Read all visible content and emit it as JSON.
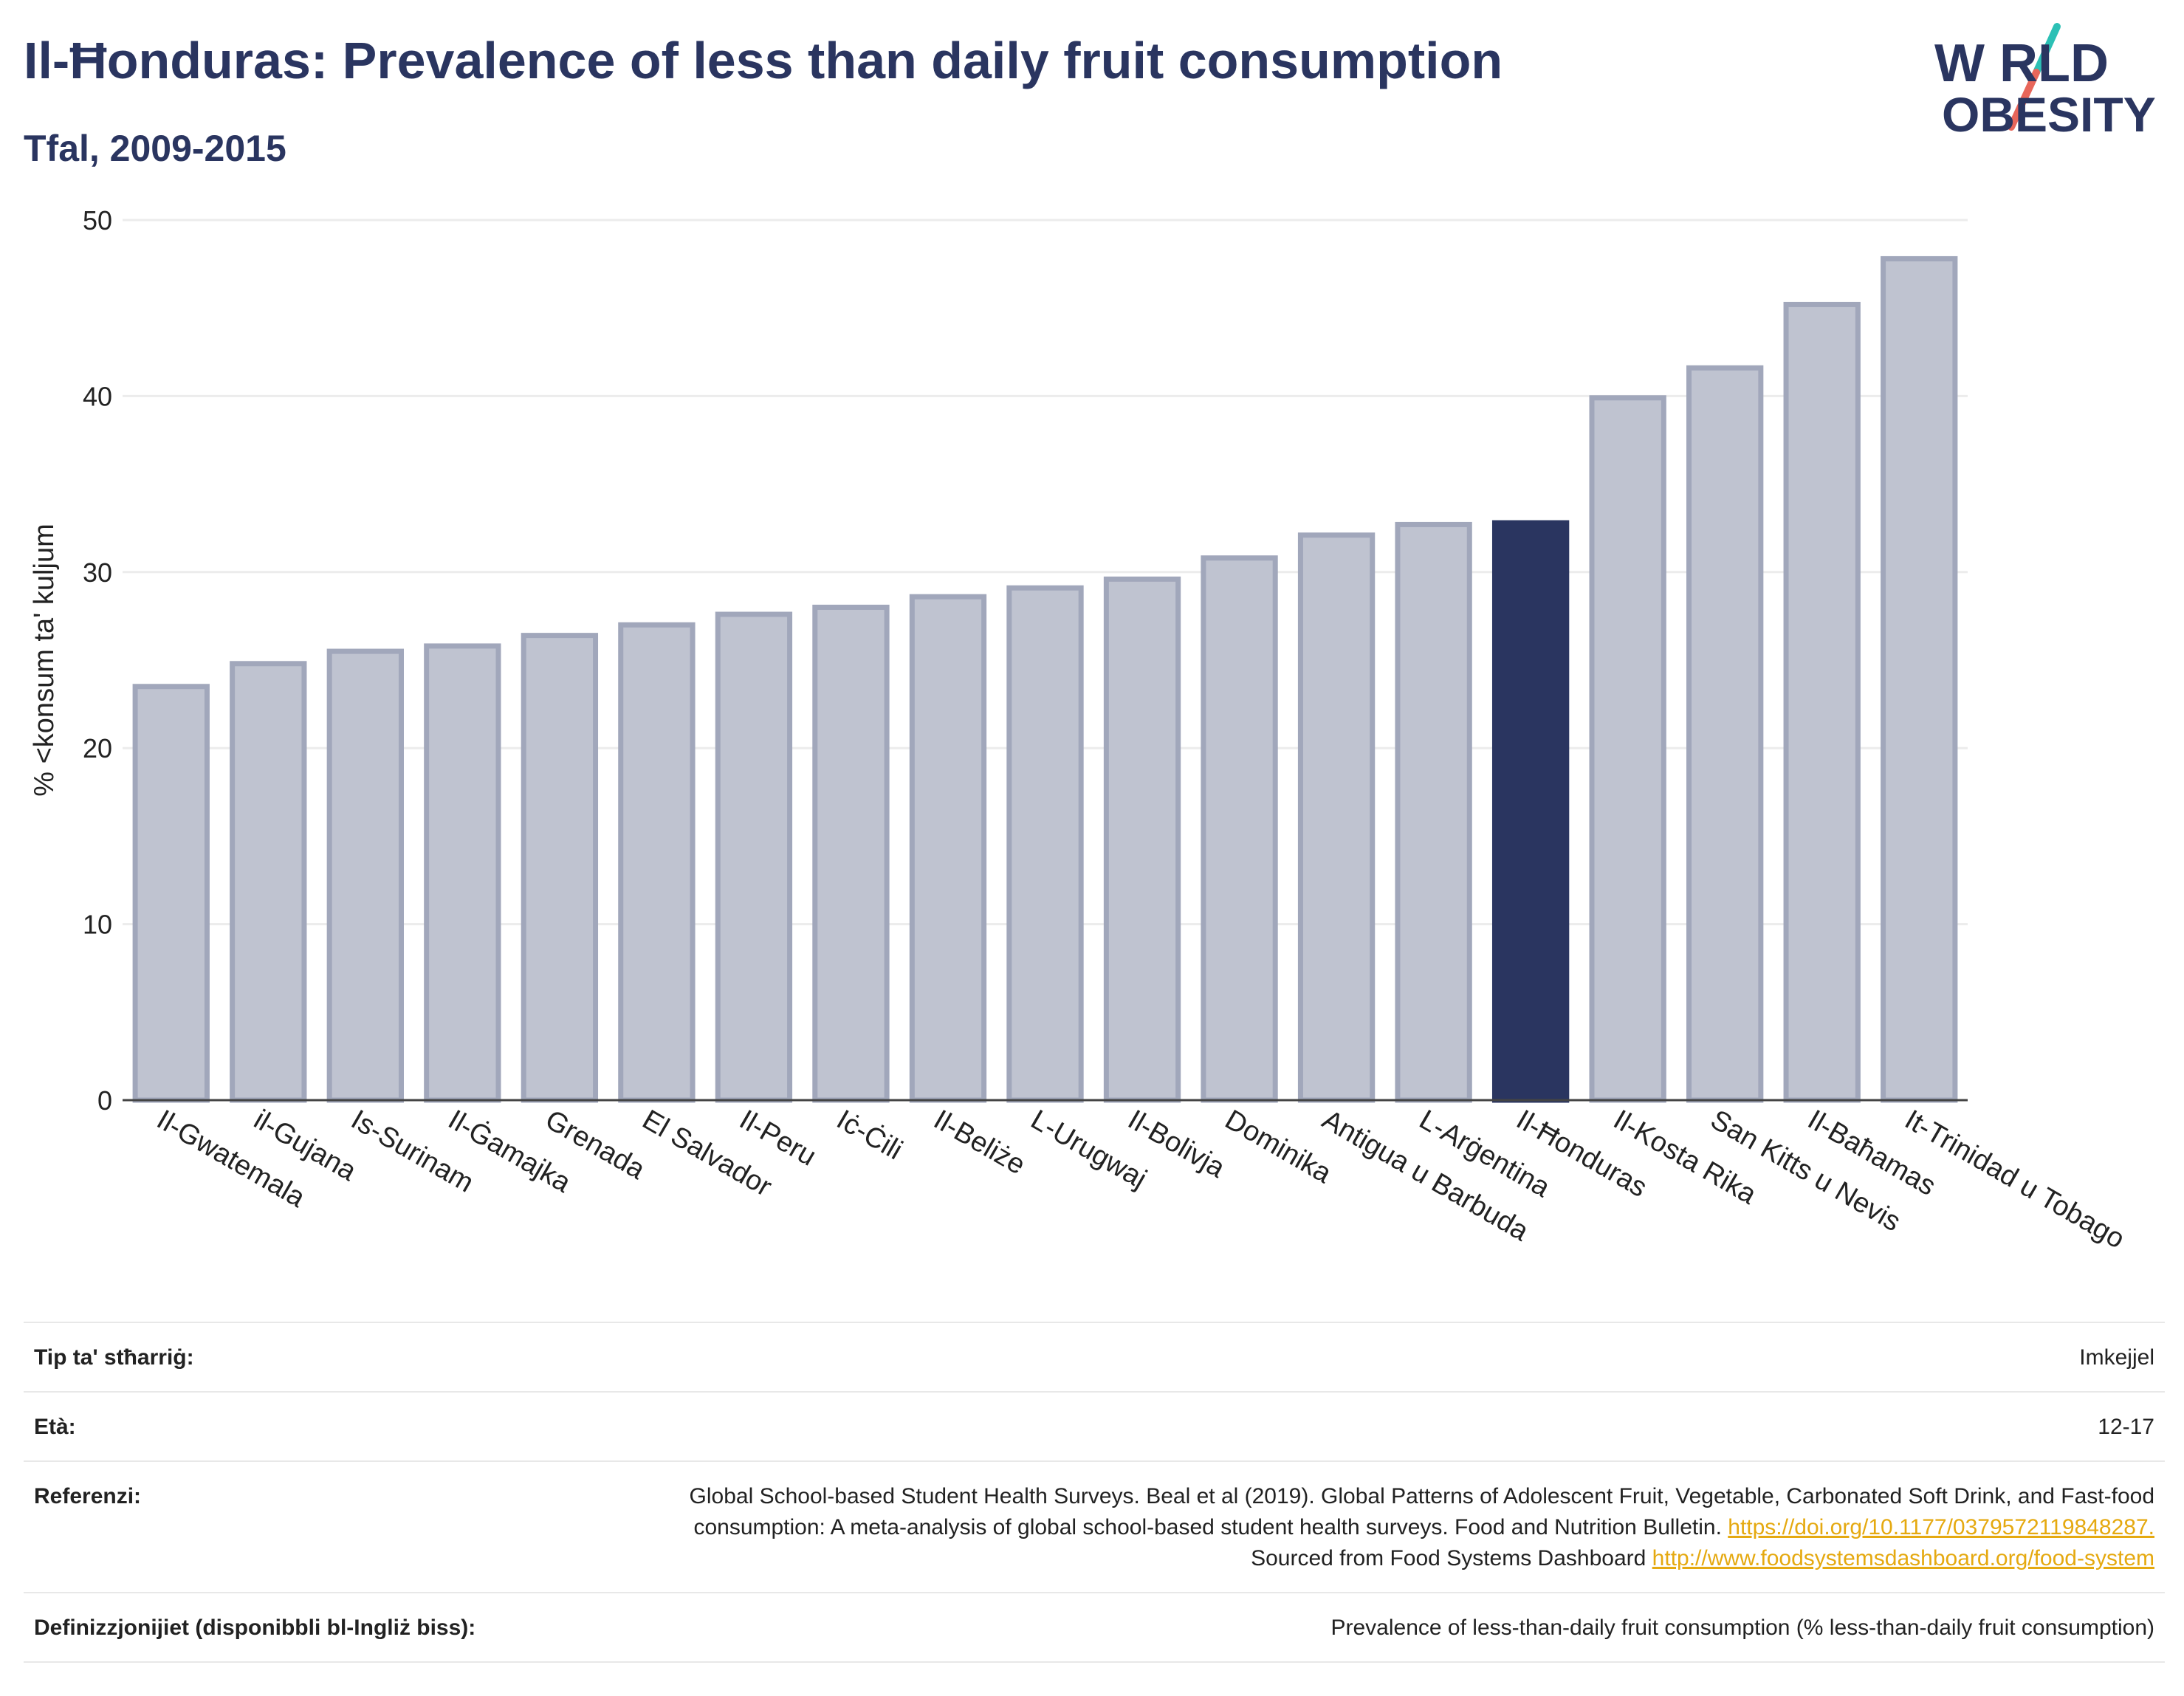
{
  "header": {
    "title": "Il-Ħonduras: Prevalence of less than daily fruit consumption",
    "subtitle": "Tfal, 2009-2015"
  },
  "logo": {
    "line1": "W RLD",
    "line2": "OBESITY",
    "accent_colors": [
      "#2cc0b5",
      "#e8665a"
    ]
  },
  "colors": {
    "highlight": "#2a3560",
    "bar_fill": "#bfc3d0",
    "bar_stroke": "#a1a7bb",
    "text": "#2a3560"
  },
  "chart_data": {
    "type": "bar",
    "title": "Il-Ħonduras: Prevalence of less than daily fruit consumption",
    "subtitle": "Tfal, 2009-2015",
    "xlabel": "",
    "ylabel": "% <konsum ta' kuljum",
    "ylim": [
      0,
      50
    ],
    "yticks": [
      0,
      10,
      20,
      30,
      40,
      50
    ],
    "grid": true,
    "highlight": "Il-Ħonduras",
    "categories": [
      "Il-Gwatemala",
      "il-Gujana",
      "Is-Surinam",
      "Il-Ġamajka",
      "Grenada",
      "El Salvador",
      "Il-Peru",
      "Iċ-Ċili",
      "Il-Beliże",
      "L-Urugwaj",
      "Il-Bolivja",
      "Dominika",
      "Antigua u Barbuda",
      "L-Arġentina",
      "Il-Ħonduras",
      "Il-Kosta Rika",
      "San Kitts u Nevis",
      "Il-Baħamas",
      "It-Trinidad u Tobago"
    ],
    "values": [
      23.5,
      24.8,
      25.5,
      25.8,
      26.4,
      27.0,
      27.6,
      28.0,
      28.6,
      29.1,
      29.6,
      30.8,
      32.1,
      32.7,
      32.8,
      39.9,
      41.6,
      45.2,
      47.8
    ]
  },
  "info": {
    "rows": [
      {
        "label": "Tip ta' stħarriġ:",
        "value": "Imkejjel"
      },
      {
        "label": "Età:",
        "value": "12-17"
      },
      {
        "label": "Definizzjonijiet (disponibbli bl-Ingliż biss):",
        "value": "Prevalence of less-than-daily fruit consumption (% less-than-daily fruit consumption)"
      }
    ],
    "reference": {
      "label": "Referenzi:",
      "text1": "Global School-based Student Health Surveys. Beal et al (2019). Global Patterns of Adolescent Fruit, Vegetable, Carbonated Soft Drink, and Fast-food consumption: A meta-analysis of global school-based student health surveys. Food and Nutrition Bulletin.",
      "link1": "https://doi.org/10.1177/0379572119848287.",
      "text2": "Sourced from Food Systems Dashboard",
      "link2": "http://www.foodsystemsdashboard.org/food-system"
    }
  }
}
